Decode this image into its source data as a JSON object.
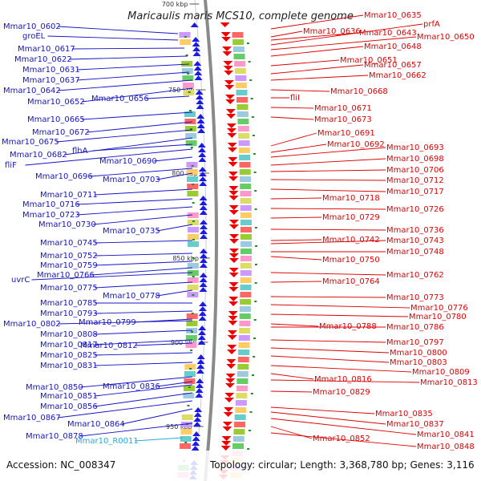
{
  "title": "Maricaulis maris MCS10, complete genome",
  "footer": {
    "accession": "Accession: NC_008347",
    "topology": "Topology: circular; Length: 3,368,780 bp; Genes: 3,116"
  },
  "ticks": [
    "700 kbp",
    "750 kbp",
    "800 kbp",
    "850 kbp",
    "900 kbp",
    "950 kbp"
  ],
  "colors": {
    "left_gene_label": "#1414c8",
    "right_gene_label": "#e00000",
    "rna_label": "#22aadd",
    "forward_strand": "#1a1ae0",
    "reverse_strand": "#ee0000",
    "backbone": "#8a8a8a"
  },
  "left_labels": [
    "Mmar10_0602",
    "groEL",
    "Mmar10_0617",
    "Mmar10_0622",
    "Mmar10_0631",
    "Mmar10_0637",
    "Mmar10_0642",
    "Mmar10_0652",
    "Mmar10_0656",
    "Mmar10_0665",
    "Mmar10_0672",
    "Mmar10_0675",
    "Mmar10_0682",
    "flhA",
    "fliF",
    "Mmar10_0690",
    "Mmar10_0696",
    "Mmar10_0703",
    "Mmar10_0711",
    "Mmar10_0716",
    "Mmar10_0723",
    "Mmar10_0730",
    "Mmar10_0735",
    "Mmar10_0745",
    "Mmar10_0752",
    "Mmar10_0759",
    "uvrC",
    "Mmar10_0766",
    "Mmar10_0775",
    "Mmar10_0778",
    "Mmar10_0785",
    "Mmar10_0793",
    "Mmar10_0802",
    "Mmar10_0799",
    "Mmar10_0808",
    "Mmar10_0817",
    "Mmar10_0812",
    "Mmar10_0825",
    "Mmar10_0831",
    "Mmar10_0850",
    "Mmar10_0836",
    "Mmar10_0851",
    "Mmar10_0856",
    "Mmar10_0867",
    "Mmar10_0864",
    "Mmar10_0878",
    "Mmar10_R0011"
  ],
  "right_labels": [
    "Mmar10_0635",
    "Mmar10_0636",
    "Mmar10_0643",
    "prfA",
    "Mmar10_0650",
    "Mmar10_0648",
    "Mmar10_0651",
    "Mmar10_0657",
    "Mmar10_0662",
    "Mmar10_0668",
    "fliI",
    "Mmar10_0671",
    "Mmar10_0673",
    "Mmar10_0691",
    "Mmar10_0692",
    "Mmar10_0693",
    "Mmar10_0698",
    "Mmar10_0706",
    "Mmar10_0712",
    "Mmar10_0717",
    "Mmar10_0718",
    "Mmar10_0726",
    "Mmar10_0729",
    "Mmar10_0736",
    "Mmar10_0742",
    "Mmar10_0743",
    "Mmar10_0748",
    "Mmar10_0750",
    "Mmar10_0762",
    "Mmar10_0764",
    "Mmar10_0773",
    "Mmar10_0776",
    "Mmar10_0780",
    "Mmar10_0788",
    "Mmar10_0786",
    "Mmar10_0797",
    "Mmar10_0800",
    "Mmar10_0803",
    "Mmar10_0809",
    "Mmar10_0816",
    "Mmar10_0813",
    "Mmar10_0829",
    "Mmar10_0835",
    "Mmar10_0837",
    "Mmar10_0841",
    "Mmar10_0852",
    "Mmar10_0848"
  ]
}
